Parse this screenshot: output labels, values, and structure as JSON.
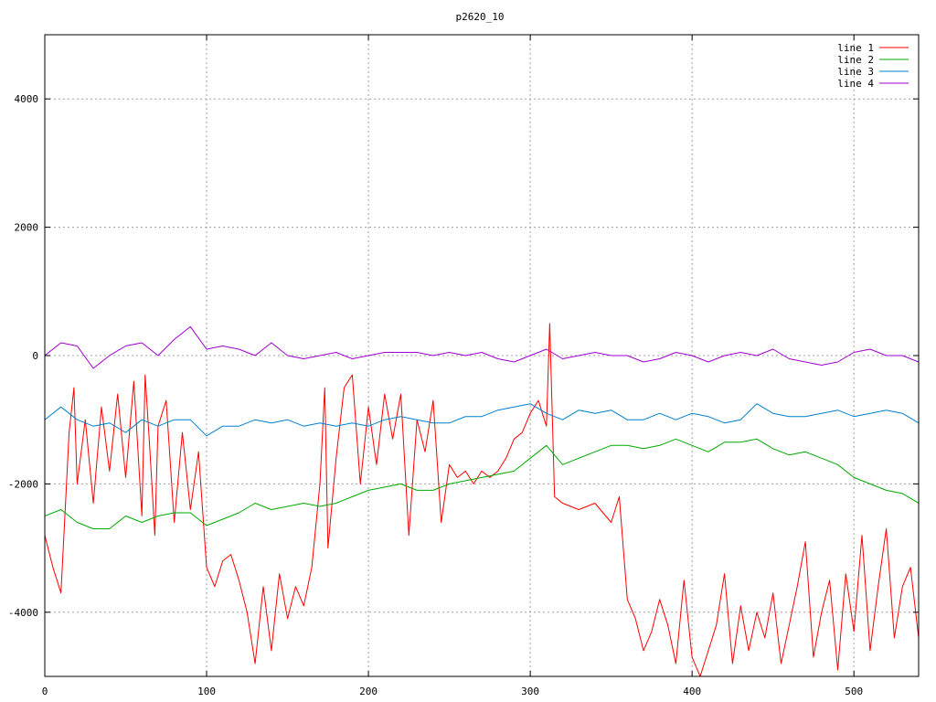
{
  "chart_data": {
    "type": "line",
    "title": "p2620_10",
    "xlabel": "",
    "ylabel": "",
    "xlim": [
      0,
      540
    ],
    "ylim": [
      -5000,
      5000
    ],
    "xticks": [
      0,
      100,
      200,
      300,
      400,
      500
    ],
    "yticks": [
      -4000,
      -2000,
      0,
      2000,
      4000
    ],
    "grid": true,
    "legend_position": "top-right",
    "series": [
      {
        "name": "line 1",
        "color": "#ff0000",
        "x": [
          0,
          5,
          10,
          15,
          18,
          20,
          25,
          30,
          35,
          40,
          45,
          50,
          55,
          60,
          62,
          65,
          68,
          70,
          75,
          80,
          85,
          90,
          95,
          100,
          105,
          110,
          115,
          120,
          125,
          130,
          135,
          140,
          145,
          150,
          155,
          160,
          165,
          170,
          173,
          175,
          180,
          185,
          190,
          195,
          200,
          205,
          210,
          215,
          220,
          225,
          230,
          235,
          240,
          245,
          250,
          255,
          260,
          265,
          270,
          275,
          280,
          285,
          290,
          295,
          300,
          305,
          310,
          312,
          315,
          320,
          330,
          340,
          350,
          355,
          360,
          365,
          370,
          375,
          380,
          385,
          390,
          395,
          400,
          405,
          410,
          415,
          420,
          425,
          430,
          435,
          440,
          445,
          450,
          455,
          460,
          465,
          470,
          475,
          480,
          485,
          490,
          495,
          500,
          505,
          510,
          515,
          520,
          525,
          530,
          535,
          540
        ],
        "y": [
          -2800,
          -3300,
          -3700,
          -1200,
          -500,
          -2000,
          -1000,
          -2300,
          -800,
          -1800,
          -600,
          -1900,
          -400,
          -2500,
          -300,
          -1500,
          -2800,
          -1100,
          -700,
          -2600,
          -1200,
          -2400,
          -1500,
          -3300,
          -3600,
          -3200,
          -3100,
          -3500,
          -4000,
          -4800,
          -3600,
          -4600,
          -3400,
          -4100,
          -3600,
          -3900,
          -3300,
          -2000,
          -500,
          -3000,
          -1600,
          -500,
          -300,
          -2000,
          -800,
          -1700,
          -600,
          -1300,
          -600,
          -2800,
          -1000,
          -1500,
          -700,
          -2600,
          -1700,
          -1900,
          -1800,
          -2000,
          -1800,
          -1900,
          -1800,
          -1600,
          -1300,
          -1200,
          -900,
          -700,
          -1100,
          500,
          -2200,
          -2300,
          -2400,
          -2300,
          -2600,
          -2200,
          -3800,
          -4100,
          -4600,
          -4300,
          -3800,
          -4200,
          -4800,
          -3500,
          -4700,
          -5000,
          -4600,
          -4200,
          -3400,
          -4800,
          -3900,
          -4600,
          -4000,
          -4400,
          -3700,
          -4800,
          -4200,
          -3600,
          -2900,
          -4700,
          -4000,
          -3500,
          -4900,
          -3400,
          -4300,
          -2800,
          -4600,
          -3600,
          -2700,
          -4400,
          -3600,
          -3300,
          -4400
        ]
      },
      {
        "name": "line 2",
        "color": "#00aa00",
        "x": [
          0,
          10,
          20,
          30,
          40,
          50,
          60,
          70,
          80,
          90,
          100,
          110,
          120,
          130,
          140,
          150,
          160,
          170,
          180,
          190,
          200,
          210,
          220,
          230,
          240,
          250,
          260,
          270,
          280,
          290,
          300,
          310,
          320,
          330,
          340,
          350,
          360,
          370,
          380,
          390,
          400,
          410,
          420,
          430,
          440,
          450,
          460,
          470,
          480,
          490,
          500,
          510,
          520,
          530,
          540
        ],
        "y": [
          -2500,
          -2400,
          -2600,
          -2700,
          -2700,
          -2500,
          -2600,
          -2500,
          -2450,
          -2450,
          -2650,
          -2550,
          -2450,
          -2300,
          -2400,
          -2350,
          -2300,
          -2350,
          -2300,
          -2200,
          -2100,
          -2050,
          -2000,
          -2100,
          -2100,
          -2000,
          -1950,
          -1900,
          -1850,
          -1800,
          -1600,
          -1400,
          -1700,
          -1600,
          -1500,
          -1400,
          -1400,
          -1450,
          -1400,
          -1300,
          -1400,
          -1500,
          -1350,
          -1350,
          -1300,
          -1450,
          -1550,
          -1500,
          -1600,
          -1700,
          -1900,
          -2000,
          -2100,
          -2150,
          -2300
        ]
      },
      {
        "name": "line 3",
        "color": "#0080d0",
        "x": [
          0,
          10,
          20,
          30,
          40,
          50,
          60,
          70,
          80,
          90,
          100,
          110,
          120,
          130,
          140,
          150,
          160,
          170,
          180,
          190,
          200,
          210,
          220,
          230,
          240,
          250,
          260,
          270,
          280,
          290,
          300,
          310,
          320,
          330,
          340,
          350,
          360,
          370,
          380,
          390,
          400,
          410,
          420,
          430,
          440,
          450,
          460,
          470,
          480,
          490,
          500,
          510,
          520,
          530,
          540
        ],
        "y": [
          -1000,
          -800,
          -1000,
          -1100,
          -1050,
          -1200,
          -1000,
          -1100,
          -1000,
          -1000,
          -1250,
          -1100,
          -1100,
          -1000,
          -1050,
          -1000,
          -1100,
          -1050,
          -1100,
          -1050,
          -1100,
          -1000,
          -950,
          -1000,
          -1050,
          -1050,
          -950,
          -950,
          -850,
          -800,
          -750,
          -900,
          -1000,
          -850,
          -900,
          -850,
          -1000,
          -1000,
          -900,
          -1000,
          -900,
          -950,
          -1050,
          -1000,
          -750,
          -900,
          -950,
          -950,
          -900,
          -850,
          -950,
          -900,
          -850,
          -900,
          -1050
        ]
      },
      {
        "name": "line 4",
        "color": "#a000d0",
        "x": [
          0,
          10,
          20,
          30,
          40,
          50,
          60,
          70,
          80,
          90,
          100,
          110,
          120,
          130,
          140,
          150,
          160,
          170,
          180,
          190,
          200,
          210,
          220,
          230,
          240,
          250,
          260,
          270,
          280,
          290,
          300,
          310,
          320,
          330,
          340,
          350,
          360,
          370,
          380,
          390,
          400,
          410,
          420,
          430,
          440,
          450,
          460,
          470,
          480,
          490,
          500,
          510,
          520,
          530,
          540
        ],
        "y": [
          0,
          200,
          150,
          -200,
          0,
          150,
          200,
          0,
          250,
          450,
          100,
          150,
          100,
          0,
          200,
          0,
          -50,
          0,
          50,
          -50,
          0,
          50,
          50,
          50,
          0,
          50,
          0,
          50,
          -50,
          -100,
          0,
          100,
          -50,
          0,
          50,
          0,
          0,
          -100,
          -50,
          50,
          0,
          -100,
          0,
          50,
          0,
          100,
          -50,
          -100,
          -150,
          -100,
          50,
          100,
          0,
          0,
          -100
        ]
      }
    ]
  }
}
